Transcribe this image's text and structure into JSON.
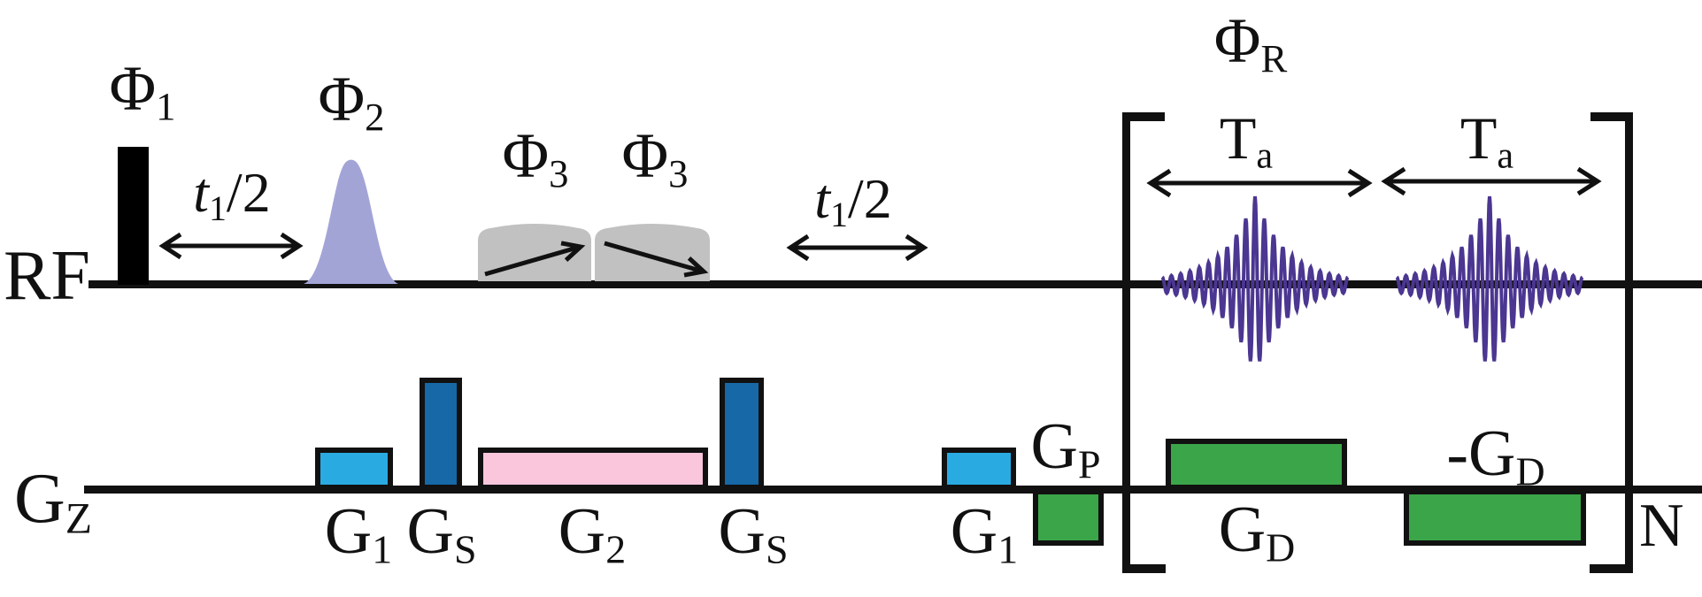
{
  "figure": {
    "description": "NMR pulse sequence timing diagram with RF row and Gz gradient row"
  },
  "rf": {
    "label": "RF",
    "phi1": {
      "main": "Φ",
      "sub": "1"
    },
    "phi2": {
      "main": "Φ",
      "sub": "2"
    },
    "phi3a": {
      "main": "Φ",
      "sub": "3"
    },
    "phi3b": {
      "main": "Φ",
      "sub": "3"
    },
    "phiR": {
      "main": "Φ",
      "sub": "R"
    },
    "t1a": {
      "pre": "t",
      "sub": "1",
      "post": "/2"
    },
    "t1b": {
      "pre": "t",
      "sub": "1",
      "post": "/2"
    },
    "ta1": {
      "main": "T",
      "sub": "a"
    },
    "ta2": {
      "main": "T",
      "sub": "a"
    },
    "loop": "N"
  },
  "gz": {
    "label": {
      "main": "G",
      "sub": "Z"
    },
    "g1a": {
      "main": "G",
      "sub": "1"
    },
    "gs1": {
      "main": "G",
      "sub": "S"
    },
    "g2": {
      "main": "G",
      "sub": "2"
    },
    "gs2": {
      "main": "G",
      "sub": "S"
    },
    "g1b": {
      "main": "G",
      "sub": "1"
    },
    "gp": {
      "main": "G",
      "sub": "P"
    },
    "gd": {
      "main": "G",
      "sub": "D"
    },
    "gdneg": {
      "main": "-G",
      "sub": "D"
    }
  },
  "colors": {
    "ink": "#111111",
    "hard_pulse": "#000000",
    "gaussian_pulse": "#A3A4D6",
    "adiabatic_pulse": "#C1C1C1",
    "echo": "#4B3691",
    "g1": "#29ABE2",
    "gs": "#1668A7",
    "g2": "#F9C6DC",
    "g_green": "#3BA549"
  },
  "echo": {
    "cycles": 20,
    "peak_amplitude": 100,
    "min_amplitude": 4,
    "envelope_decay": 0.33,
    "samples_per_cycle": 16,
    "stroke_width": 4
  }
}
